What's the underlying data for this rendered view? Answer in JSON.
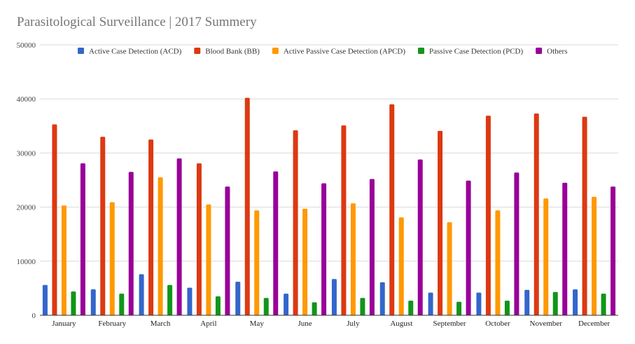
{
  "chart_data": {
    "type": "bar",
    "title": "Parasitological Surveillance | 2017 Summery",
    "xlabel": "",
    "ylabel": "",
    "ylim": [
      0,
      50000
    ],
    "yticks": [
      0,
      10000,
      20000,
      30000,
      40000,
      50000
    ],
    "grid": true,
    "legend_position": "top",
    "categories": [
      "January",
      "February",
      "March",
      "April",
      "May",
      "June",
      "July",
      "August",
      "September",
      "October",
      "November",
      "December"
    ],
    "series": [
      {
        "name": "Active Case Detection (ACD)",
        "color": "#3366cc",
        "values": [
          5600,
          4800,
          7600,
          5100,
          6200,
          4000,
          6700,
          6100,
          4200,
          4200,
          4700,
          4800
        ]
      },
      {
        "name": "Blood Bank (BB)",
        "color": "#dc3912",
        "values": [
          35300,
          33000,
          32500,
          28100,
          40200,
          34200,
          35100,
          39000,
          34100,
          36900,
          37300,
          36700
        ]
      },
      {
        "name": "Active Passive Case Detection (APCD)",
        "color": "#ff9900",
        "values": [
          20300,
          20900,
          25500,
          20500,
          19400,
          19700,
          20700,
          18100,
          17200,
          19400,
          21600,
          21900
        ]
      },
      {
        "name": "Passive Case Detection (PCD)",
        "color": "#109618",
        "values": [
          4400,
          4000,
          5600,
          3500,
          3200,
          2400,
          3200,
          2700,
          2500,
          2700,
          4300,
          4000
        ]
      },
      {
        "name": "Others",
        "color": "#990099",
        "values": [
          28100,
          26500,
          29000,
          23800,
          26600,
          24400,
          25200,
          28800,
          24900,
          26400,
          24500,
          23800
        ]
      }
    ]
  }
}
